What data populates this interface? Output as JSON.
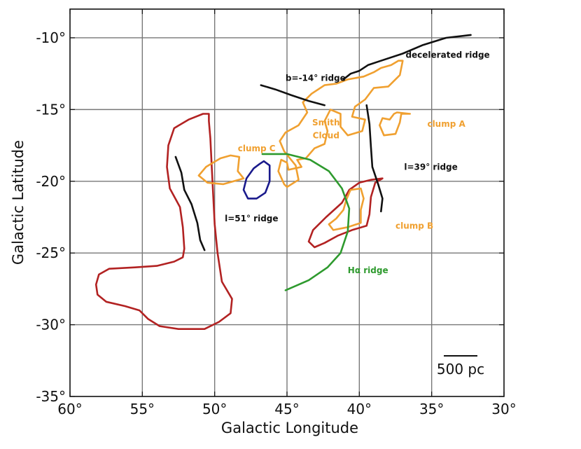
{
  "chart_data": {
    "type": "line",
    "xlabel": "Galactic Longitude",
    "ylabel": "Galactic Latitude",
    "xlim": [
      60,
      30
    ],
    "ylim": [
      -35,
      -8
    ],
    "x_reversed": true,
    "grid": true,
    "x_ticks": [
      60,
      55,
      50,
      45,
      40,
      35,
      30
    ],
    "x_tick_labels": [
      "60°",
      "55°",
      "50°",
      "45°",
      "40°",
      "35°",
      "30°"
    ],
    "y_ticks": [
      -10,
      -15,
      -20,
      -25,
      -30,
      -35
    ],
    "y_tick_labels": [
      "-10°",
      "-15°",
      "-20°",
      "-25°",
      "-30°",
      "-35°"
    ],
    "colors": {
      "red": "#b22222",
      "orange": "#f0a030",
      "blue": "#1a1a8c",
      "green": "#2e9a2e",
      "black": "#111111"
    },
    "series": [
      {
        "name": "red-contour-west",
        "color": "red",
        "closed": true,
        "points": [
          [
            50.4,
            -15.3
          ],
          [
            50.8,
            -15.3
          ],
          [
            51.8,
            -15.7
          ],
          [
            52.8,
            -16.3
          ],
          [
            53.2,
            -17.5
          ],
          [
            53.3,
            -19
          ],
          [
            53.1,
            -20.5
          ],
          [
            52.4,
            -21.8
          ],
          [
            52.2,
            -23.2
          ],
          [
            52.1,
            -24.7
          ],
          [
            52.2,
            -25.3
          ],
          [
            52.8,
            -25.6
          ],
          [
            54,
            -25.9
          ],
          [
            55.5,
            -26.0
          ],
          [
            57.3,
            -26.1
          ],
          [
            58,
            -26.5
          ],
          [
            58.2,
            -27.2
          ],
          [
            58.1,
            -27.9
          ],
          [
            57.5,
            -28.4
          ],
          [
            56.2,
            -28.7
          ],
          [
            55.2,
            -29.0
          ],
          [
            54.6,
            -29.6
          ],
          [
            53.8,
            -30.1
          ],
          [
            52.5,
            -30.3
          ],
          [
            50.7,
            -30.3
          ],
          [
            49.7,
            -29.8
          ],
          [
            48.9,
            -29.2
          ],
          [
            48.8,
            -28.2
          ],
          [
            49.5,
            -27.0
          ],
          [
            49.8,
            -25.0
          ],
          [
            50.0,
            -23.0
          ],
          [
            50.1,
            -21.0
          ],
          [
            50.2,
            -19.0
          ],
          [
            50.3,
            -17.0
          ],
          [
            50.4,
            -15.8
          ]
        ]
      },
      {
        "name": "red-contour-clump-b",
        "color": "red",
        "closed": true,
        "points": [
          [
            38.4,
            -19.8
          ],
          [
            38.9,
            -20.1
          ],
          [
            39.2,
            -21.1
          ],
          [
            39.3,
            -22.3
          ],
          [
            39.5,
            -23.1
          ],
          [
            40.5,
            -23.4
          ],
          [
            41.5,
            -23.8
          ],
          [
            42.4,
            -24.3
          ],
          [
            43.1,
            -24.6
          ],
          [
            43.5,
            -24.2
          ],
          [
            43.2,
            -23.4
          ],
          [
            42.3,
            -22.5
          ],
          [
            41.2,
            -21.5
          ],
          [
            40.7,
            -20.6
          ],
          [
            40.0,
            -20.1
          ],
          [
            39.2,
            -19.9
          ]
        ]
      },
      {
        "name": "clump-b-orange",
        "color": "orange",
        "closed": true,
        "points": [
          [
            40.6,
            -20.6
          ],
          [
            39.9,
            -20.5
          ],
          [
            39.7,
            -21.2
          ],
          [
            39.9,
            -22.0
          ],
          [
            39.9,
            -22.9
          ],
          [
            40.8,
            -23.2
          ],
          [
            41.8,
            -23.4
          ],
          [
            42.1,
            -23.0
          ],
          [
            41.6,
            -22.6
          ],
          [
            41.1,
            -22.0
          ],
          [
            40.9,
            -21.3
          ],
          [
            40.7,
            -20.8
          ]
        ]
      },
      {
        "name": "clump-c-orange",
        "color": "orange",
        "closed": true,
        "points": [
          [
            48.3,
            -18.3
          ],
          [
            48.4,
            -19.3
          ],
          [
            48.0,
            -19.8
          ],
          [
            49.4,
            -20.2
          ],
          [
            50.5,
            -20.1
          ],
          [
            51.1,
            -19.6
          ],
          [
            50.6,
            -19.0
          ],
          [
            49.6,
            -18.4
          ],
          [
            48.9,
            -18.2
          ]
        ]
      },
      {
        "name": "clump-a-orange",
        "color": "orange",
        "closed": true,
        "points": [
          [
            36.5,
            -15.3
          ],
          [
            37.1,
            -15.3
          ],
          [
            37.2,
            -15.9
          ],
          [
            37.5,
            -16.7
          ],
          [
            38.3,
            -16.8
          ],
          [
            38.6,
            -16.1
          ],
          [
            38.4,
            -15.6
          ],
          [
            37.9,
            -15.7
          ],
          [
            37.6,
            -15.3
          ],
          [
            37.4,
            -15.2
          ]
        ]
      },
      {
        "name": "smith-cloud-orange",
        "color": "orange",
        "closed": true,
        "points": [
          [
            37.0,
            -11.6
          ],
          [
            37.2,
            -12.6
          ],
          [
            38.0,
            -13.4
          ],
          [
            39.0,
            -13.5
          ],
          [
            39.6,
            -14.3
          ],
          [
            40.3,
            -14.8
          ],
          [
            40.5,
            -15.5
          ],
          [
            39.6,
            -15.7
          ],
          [
            39.8,
            -16.5
          ],
          [
            40.8,
            -16.8
          ],
          [
            41.3,
            -16.2
          ],
          [
            41.3,
            -15.3
          ],
          [
            42.0,
            -15.0
          ],
          [
            42.4,
            -15.8
          ],
          [
            42.2,
            -16.5
          ],
          [
            42.4,
            -17.4
          ],
          [
            43.1,
            -17.7
          ],
          [
            43.7,
            -18.4
          ],
          [
            44.3,
            -18.5
          ],
          [
            44.0,
            -19.0
          ],
          [
            44.9,
            -19.2
          ],
          [
            45.0,
            -18.7
          ],
          [
            45.4,
            -18.5
          ],
          [
            45.6,
            -19.3
          ],
          [
            45.2,
            -20.2
          ],
          [
            45.0,
            -20.4
          ],
          [
            44.2,
            -19.9
          ],
          [
            44.4,
            -18.9
          ],
          [
            45.2,
            -17.9
          ],
          [
            45.5,
            -17.2
          ],
          [
            45.1,
            -16.6
          ],
          [
            44.2,
            -16.1
          ],
          [
            43.6,
            -15.2
          ],
          [
            43.9,
            -14.5
          ],
          [
            43.3,
            -13.9
          ],
          [
            42.4,
            -13.3
          ],
          [
            41.6,
            -13.2
          ],
          [
            40.8,
            -12.9
          ],
          [
            39.7,
            -12.7
          ],
          [
            39.0,
            -12.4
          ],
          [
            38.5,
            -12.1
          ],
          [
            37.8,
            -11.9
          ],
          [
            37.3,
            -11.6
          ]
        ]
      },
      {
        "name": "blue-contour",
        "color": "blue",
        "closed": true,
        "points": [
          [
            46.6,
            -18.6
          ],
          [
            46.2,
            -18.9
          ],
          [
            46.2,
            -20.0
          ],
          [
            46.5,
            -20.8
          ],
          [
            47.1,
            -21.2
          ],
          [
            47.7,
            -21.2
          ],
          [
            48.0,
            -20.6
          ],
          [
            47.8,
            -19.8
          ],
          [
            47.3,
            -19.1
          ],
          [
            46.9,
            -18.8
          ]
        ]
      },
      {
        "name": "h-alpha-ridge",
        "color": "green",
        "closed": false,
        "points": [
          [
            46.7,
            -18.1
          ],
          [
            45.0,
            -18.1
          ],
          [
            43.4,
            -18.5
          ],
          [
            42.1,
            -19.3
          ],
          [
            41.2,
            -20.5
          ],
          [
            40.7,
            -21.9
          ],
          [
            40.8,
            -23.5
          ],
          [
            41.3,
            -25.0
          ],
          [
            42.2,
            -26.0
          ],
          [
            43.5,
            -26.9
          ],
          [
            45.1,
            -27.6
          ]
        ]
      },
      {
        "name": "decelerated-ridge",
        "color": "black",
        "closed": false,
        "points": [
          [
            41.1,
            -12.9
          ],
          [
            40.6,
            -12.5
          ],
          [
            40.0,
            -12.3
          ],
          [
            39.4,
            -11.9
          ],
          [
            38.5,
            -11.6
          ],
          [
            37.0,
            -11.1
          ],
          [
            35.6,
            -10.5
          ],
          [
            34.0,
            -10.0
          ],
          [
            32.3,
            -9.8
          ]
        ]
      },
      {
        "name": "b-14-ridge",
        "color": "black",
        "closed": false,
        "points": [
          [
            46.8,
            -13.3
          ],
          [
            45.8,
            -13.6
          ],
          [
            44.7,
            -14.0
          ],
          [
            43.5,
            -14.4
          ],
          [
            42.4,
            -14.7
          ]
        ]
      },
      {
        "name": "l-39-ridge",
        "color": "black",
        "closed": false,
        "points": [
          [
            39.5,
            -14.7
          ],
          [
            39.3,
            -16.0
          ],
          [
            39.2,
            -17.6
          ],
          [
            39.1,
            -19.0
          ],
          [
            38.7,
            -20.2
          ],
          [
            38.4,
            -21.2
          ],
          [
            38.5,
            -22.1
          ]
        ]
      },
      {
        "name": "l-51-ridge",
        "color": "black",
        "closed": false,
        "points": [
          [
            52.7,
            -18.3
          ],
          [
            52.3,
            -19.4
          ],
          [
            52.1,
            -20.6
          ],
          [
            51.6,
            -21.6
          ],
          [
            51.2,
            -22.9
          ],
          [
            51.0,
            -24.1
          ],
          [
            50.7,
            -24.8
          ]
        ]
      }
    ],
    "annotations": [
      {
        "text": "decelerated ridge",
        "x": 36.8,
        "y": -11.4,
        "color": "black"
      },
      {
        "text": "b=-14° ridge",
        "x": 45.1,
        "y": -13.0,
        "color": "black"
      },
      {
        "text": "Smith",
        "x": 42.3,
        "y": -16.1,
        "color": "orange"
      },
      {
        "text": "Cloud",
        "x": 42.3,
        "y": -17.0,
        "color": "orange"
      },
      {
        "text": "clump A",
        "x": 35.3,
        "y": -16.2,
        "color": "orange"
      },
      {
        "text": "clump C",
        "x": 48.4,
        "y": -17.9,
        "color": "orange"
      },
      {
        "text": "l=39° ridge",
        "x": 36.9,
        "y": -19.2,
        "color": "black"
      },
      {
        "text": "l=51° ridge",
        "x": 49.3,
        "y": -22.8,
        "color": "black"
      },
      {
        "text": "clump B",
        "x": 37.5,
        "y": -23.3,
        "color": "orange"
      },
      {
        "text": "Hα ridge",
        "x": 40.8,
        "y": -26.4,
        "color": "green"
      }
    ],
    "scale_bar": {
      "label": "500 pc"
    }
  }
}
